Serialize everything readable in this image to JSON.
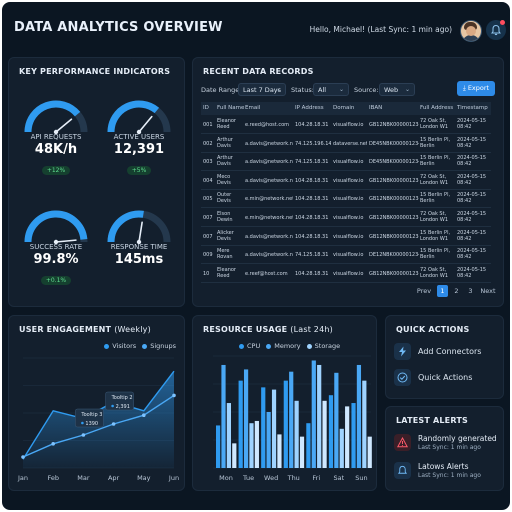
{
  "header": {
    "title": "DATA ANALYTICS OVERVIEW",
    "greeting": "Hello, Michael! (Last Sync: 1 min ago)",
    "icons": [
      "avatar",
      "bell-icon"
    ]
  },
  "kpi": {
    "title": "KEY PERFORMANCE INDICATORS",
    "items": [
      {
        "label": "API REQUESTS",
        "value": "48K/h",
        "change": "+12%",
        "fill": 0.78
      },
      {
        "label": "ACTIVE USERS",
        "value": "12,391",
        "change": "+5%",
        "fill": 0.72
      },
      {
        "label": "SUCCESS RATE",
        "value": "99.8%",
        "change": "+0.1%",
        "fill": 0.97
      },
      {
        "label": "RESPONSE TIME",
        "value": "145ms",
        "change": "",
        "fill": 0.55
      }
    ],
    "colors": {
      "gauge": "#2f9bf0",
      "track": "#24384d"
    }
  },
  "records": {
    "title": "RECENT DATA RECORDS",
    "filters": {
      "date_label": "Date Range:",
      "date_value": "Last 7 Days",
      "status_label": "Status:",
      "status_value": "All",
      "source_label": "Source:",
      "source_value": "Web"
    },
    "export_label": "Export",
    "columns": [
      "ID",
      "Full Name",
      "Email",
      "IP Address",
      "Domain",
      "IBAN",
      "Full Address",
      "Timestamp"
    ],
    "rows": [
      [
        "001",
        "Eleanor Reed",
        "e.reed@host.com",
        "104.28.18.31",
        "visualflow.io",
        "GB12NBK000001234567",
        "72 Oak St, London W1",
        "2024-05-15 08:42"
      ],
      [
        "002",
        "Arthur Davis",
        "a.davis@network.net",
        "74.125.196.147",
        "dataverse.net",
        "DE45NBK000001234567",
        "15 Berlin Pl, Berlin",
        "2024-05-15 08:42"
      ],
      [
        "003",
        "Arthur Davis",
        "a.davis@network.net",
        "74.125.18.31",
        "visualflow.io",
        "DE45NBK000001234567",
        "15 Berlin Pl, Berlin",
        "2024-05-15 08:42"
      ],
      [
        "004",
        "Meco Devis",
        "a.davis@network.net",
        "104.28.18.31",
        "visualflow.io",
        "GB12NBK000001234567",
        "72 Oak St, London W1",
        "2024-05-15 08:42"
      ],
      [
        "005",
        "Outer Devis",
        "e.min@network.net",
        "104.28.18.31",
        "visualflow.io",
        "GB12NBK000001234567",
        "15 Berlin Pl, Berlin",
        "2024-05-15 08:42"
      ],
      [
        "007",
        "Elson Dewin",
        "e.min@network.net",
        "104.28.18.31",
        "visualflow.io",
        "GB12NBK000001234567",
        "72 Oak St, London W1",
        "2024-05-15 08:42"
      ],
      [
        "007",
        "Alicker Devis",
        "a.davis@network.net",
        "104.28.18.31",
        "visualflow.io",
        "GB12NBK000001234567",
        "15 Berlin Pl, London W1",
        "2024-05-15 08:42"
      ],
      [
        "009",
        "Mere Rovan",
        "a.davis@network.net",
        "74.125.18.31",
        "visualflow.io",
        "DE12NBK000001234567",
        "15 Berlin Pl, Berlin",
        "2024-05-15 08:42"
      ],
      [
        "10",
        "Eleanor Reed",
        "e.reef@host.com",
        "104.28.18.31",
        "visualflow.io",
        "GB12NBK000001234567",
        "72 Oak St, London W1",
        "2024-05-15 08:42"
      ]
    ],
    "pagination": {
      "prev": "Prev",
      "pages": [
        "1",
        "2",
        "3"
      ],
      "active": "1",
      "next": "Next"
    }
  },
  "engagement": {
    "title": "USER ENGAGEMENT",
    "title_suffix": "(Weekly)",
    "tooltips": [
      {
        "title": "Tooltip 3",
        "value": "1390"
      },
      {
        "title": "Tooltip 2",
        "value": "2,391"
      }
    ]
  },
  "resource": {
    "title": "RESOURCE USAGE",
    "title_suffix": "(Last 24h)"
  },
  "chart_data": [
    {
      "type": "area",
      "title": "USER ENGAGEMENT (Weekly)",
      "categories": [
        "Jan",
        "Feb",
        "Mar",
        "Apr",
        "May",
        "Jun"
      ],
      "series": [
        {
          "name": "Visitors",
          "values": [
            8,
            52,
            45,
            60,
            52,
            88
          ],
          "color": "#2f9bf0"
        },
        {
          "name": "Signups",
          "values": [
            10,
            22,
            30,
            40,
            48,
            66
          ],
          "color": "#4aa8f5"
        }
      ],
      "ylim": [
        0,
        100
      ],
      "grid": true,
      "legend": "top-right"
    },
    {
      "type": "bar",
      "title": "RESOURCE USAGE (Last 24h)",
      "categories": [
        "Mon",
        "Tue",
        "Wed",
        "Thu",
        "Fri",
        "Sat",
        "Sun"
      ],
      "series": [
        {
          "name": "CPU",
          "values": [
            38,
            78,
            72,
            78,
            40,
            65,
            58
          ],
          "color": "#2f9bf0"
        },
        {
          "name": "Memory",
          "values": [
            92,
            88,
            50,
            86,
            96,
            85,
            92
          ],
          "color": "#4aa8f5"
        },
        {
          "name": "Storage",
          "values": [
            58,
            40,
            70,
            60,
            92,
            35,
            78
          ],
          "color": "#9fd3ff"
        }
      ],
      "series_pair_accent": [
        22,
        42,
        30,
        28,
        60,
        55,
        28
      ],
      "ylim": [
        0,
        100
      ],
      "grid": true,
      "legend": "top-center"
    }
  ],
  "quick_actions": {
    "title": "QUICK ACTIONS",
    "items": [
      {
        "label": "Add Connectors",
        "icon": "bolt-icon"
      },
      {
        "label": "Quick Actions",
        "icon": "check-circle-icon"
      }
    ]
  },
  "alerts": {
    "title": "LATEST ALERTS",
    "items": [
      {
        "title": "Randomly generated",
        "sub": "Last Sync: 1 min ago",
        "icon": "warning-icon"
      },
      {
        "title": "Latows Alerts",
        "sub": "Last Sync: 1 min ago",
        "icon": "bell-icon"
      }
    ]
  }
}
